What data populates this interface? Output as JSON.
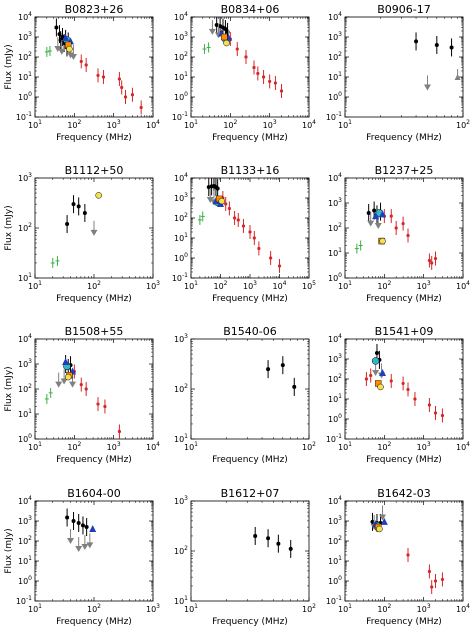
{
  "panels": [
    {
      "title": "B0823+26",
      "xdec": [
        1,
        4
      ],
      "ydec": [
        -1,
        4
      ],
      "xlabel": "Frequency (MHz)",
      "ylabel": "Flux (mJy)",
      "black": [
        [
          35,
          3000
        ],
        [
          42,
          1400
        ],
        [
          50,
          1000
        ],
        [
          60,
          800
        ],
        [
          70,
          600
        ],
        [
          45,
          700
        ],
        [
          55,
          500
        ],
        [
          65,
          300
        ]
      ],
      "gray_down": [
        [
          38,
          250
        ],
        [
          48,
          180
        ],
        [
          80,
          120
        ],
        [
          95,
          100
        ]
      ],
      "green": [
        [
          20,
          180
        ],
        [
          24,
          200
        ]
      ],
      "red": [
        [
          150,
          60
        ],
        [
          200,
          40
        ],
        [
          400,
          12
        ],
        [
          550,
          10
        ],
        [
          1400,
          8
        ],
        [
          1600,
          3
        ],
        [
          2000,
          1
        ],
        [
          3000,
          1.3
        ],
        [
          5000,
          0.3
        ]
      ],
      "yellow": [
        [
          75,
          250
        ]
      ],
      "orange": [
        [
          70,
          400
        ]
      ],
      "blue": [
        [
          60,
          900
        ],
        [
          80,
          600
        ]
      ],
      "cyan": [
        [
          65,
          700
        ]
      ]
    },
    {
      "title": "B0834+06",
      "xdec": [
        1,
        4
      ],
      "ydec": [
        -1,
        4
      ],
      "xlabel": "Frequency (MHz)",
      "ylabel": "",
      "black": [
        [
          45,
          4000
        ],
        [
          55,
          3500
        ],
        [
          65,
          3000
        ],
        [
          75,
          2500
        ],
        [
          85,
          1800
        ]
      ],
      "gray_down": [
        [
          35,
          1800
        ],
        [
          50,
          1200
        ],
        [
          90,
          600
        ]
      ],
      "green": [
        [
          22,
          250
        ],
        [
          28,
          300
        ]
      ],
      "red": [
        [
          100,
          800
        ],
        [
          150,
          250
        ],
        [
          250,
          100
        ],
        [
          400,
          30
        ],
        [
          500,
          15
        ],
        [
          700,
          10
        ],
        [
          1000,
          6
        ],
        [
          1400,
          5
        ],
        [
          2000,
          2
        ]
      ],
      "yellow": [
        [
          80,
          500
        ]
      ],
      "orange": [
        [
          70,
          1000
        ]
      ],
      "blue": [
        [
          60,
          1500
        ],
        [
          90,
          900
        ]
      ],
      "cyan": [
        [
          75,
          800
        ]
      ]
    },
    {
      "title": "B0906-17",
      "xdec": [
        1,
        2
      ],
      "ydec": [
        -1,
        4
      ],
      "xlabel": "Frequency (MHz)",
      "ylabel": "",
      "black": [
        [
          40,
          600
        ],
        [
          60,
          400
        ],
        [
          80,
          300
        ]
      ],
      "gray_down": [
        [
          50,
          3
        ]
      ],
      "gray_up": [
        [
          90,
          10
        ]
      ]
    },
    {
      "title": "B1112+50",
      "xdec": [
        1,
        3
      ],
      "ydec": [
        1,
        3
      ],
      "xlabel": "Frequency (MHz)",
      "ylabel": "Flux (mJy)",
      "black": [
        [
          35,
          120
        ],
        [
          45,
          300
        ],
        [
          55,
          270
        ],
        [
          70,
          200
        ]
      ],
      "gray_down": [
        [
          100,
          80
        ]
      ],
      "green": [
        [
          20,
          20
        ],
        [
          24,
          22
        ]
      ],
      "yellow": [
        [
          120,
          450
        ]
      ]
    },
    {
      "title": "B1133+16",
      "xdec": [
        1,
        5
      ],
      "ydec": [
        -1,
        4
      ],
      "xlabel": "Frequency (MHz)",
      "ylabel": "",
      "black": [
        [
          40,
          3500
        ],
        [
          50,
          3800
        ],
        [
          60,
          4000
        ],
        [
          70,
          3500
        ],
        [
          80,
          3000
        ]
      ],
      "gray_down": [
        [
          45,
          800
        ],
        [
          60,
          600
        ]
      ],
      "green": [
        [
          20,
          80
        ],
        [
          25,
          120
        ]
      ],
      "red": [
        [
          120,
          1000
        ],
        [
          150,
          500
        ],
        [
          200,
          300
        ],
        [
          300,
          100
        ],
        [
          400,
          80
        ],
        [
          600,
          40
        ],
        [
          1000,
          20
        ],
        [
          1400,
          10
        ],
        [
          2000,
          3
        ],
        [
          5000,
          1
        ],
        [
          10000,
          0.4
        ]
      ],
      "yellow": [
        [
          110,
          700
        ]
      ],
      "orange": [
        [
          90,
          900
        ]
      ],
      "blue": [
        [
          70,
          700
        ],
        [
          100,
          500
        ]
      ],
      "cyan": [
        [
          80,
          600
        ]
      ]
    },
    {
      "title": "B1237+25",
      "xdec": [
        1,
        4
      ],
      "ydec": [
        0,
        4
      ],
      "xlabel": "Frequency (MHz)",
      "ylabel": "",
      "black": [
        [
          40,
          400
        ],
        [
          55,
          500
        ],
        [
          65,
          350
        ],
        [
          80,
          450
        ]
      ],
      "gray_down": [
        [
          45,
          150
        ],
        [
          70,
          120
        ]
      ],
      "green": [
        [
          20,
          15
        ],
        [
          25,
          20
        ]
      ],
      "red": [
        [
          100,
          300
        ],
        [
          150,
          300
        ],
        [
          200,
          100
        ],
        [
          300,
          150
        ],
        [
          400,
          50
        ],
        [
          1400,
          5
        ],
        [
          1600,
          4
        ],
        [
          2000,
          6
        ]
      ],
      "yellow": [
        [
          90,
          30
        ]
      ],
      "orange": [
        [
          85,
          30
        ]
      ],
      "blue": [
        [
          60,
          300
        ],
        [
          90,
          350
        ]
      ],
      "cyan": [
        [
          75,
          400
        ]
      ]
    },
    {
      "title": "B1508+55",
      "xdec": [
        1,
        4
      ],
      "ydec": [
        0,
        4
      ],
      "xlabel": "Frequency (MHz)",
      "ylabel": "Flux (mJy)",
      "black": [
        [
          60,
          1000
        ],
        [
          70,
          700
        ],
        [
          80,
          900
        ]
      ],
      "gray_down": [
        [
          40,
          150
        ],
        [
          55,
          200
        ],
        [
          90,
          150
        ]
      ],
      "green": [
        [
          20,
          40
        ],
        [
          25,
          70
        ]
      ],
      "red": [
        [
          100,
          500
        ],
        [
          150,
          150
        ],
        [
          200,
          100
        ],
        [
          400,
          25
        ],
        [
          600,
          20
        ],
        [
          1400,
          2
        ]
      ],
      "yellow": [
        [
          70,
          300
        ]
      ],
      "orange": [
        [
          75,
          350
        ]
      ],
      "blue": [
        [
          60,
          1200
        ],
        [
          90,
          500
        ]
      ],
      "cyan": [
        [
          65,
          800
        ]
      ]
    },
    {
      "title": "B1540-06",
      "xdec": [
        1,
        2
      ],
      "ydec": [
        1,
        3
      ],
      "xlabel": "Frequency (MHz)",
      "ylabel": "",
      "black": [
        [
          45,
          250
        ],
        [
          60,
          300
        ],
        [
          75,
          110
        ]
      ]
    },
    {
      "title": "B1541+09",
      "xdec": [
        1,
        4
      ],
      "ydec": [
        -1,
        4
      ],
      "xlabel": "Frequency (MHz)",
      "ylabel": "",
      "black": [
        [
          65,
          2000
        ],
        [
          75,
          900
        ]
      ],
      "gray_down": [
        [
          60,
          200
        ],
        [
          85,
          150
        ]
      ],
      "red": [
        [
          35,
          100
        ],
        [
          45,
          150
        ],
        [
          150,
          80
        ],
        [
          300,
          60
        ],
        [
          400,
          30
        ],
        [
          600,
          10
        ],
        [
          1400,
          5
        ],
        [
          2000,
          2
        ],
        [
          3000,
          1.5
        ]
      ],
      "yellow": [
        [
          80,
          40
        ]
      ],
      "orange": [
        [
          70,
          60
        ]
      ],
      "blue": [
        [
          90,
          200
        ]
      ],
      "cyan": [
        [
          60,
          800
        ]
      ]
    },
    {
      "title": "B1604-00",
      "xdec": [
        1,
        3
      ],
      "ydec": [
        -1,
        4
      ],
      "xlabel": "Frequency (MHz)",
      "ylabel": "Flux (mJy)",
      "black": [
        [
          35,
          1500
        ],
        [
          45,
          1000
        ],
        [
          55,
          800
        ],
        [
          65,
          600
        ],
        [
          75,
          500
        ]
      ],
      "gray_down": [
        [
          40,
          100
        ],
        [
          55,
          40
        ],
        [
          70,
          50
        ],
        [
          85,
          60
        ]
      ],
      "blue": [
        [
          95,
          400
        ]
      ]
    },
    {
      "title": "B1612+07",
      "xdec": [
        1,
        2
      ],
      "ydec": [
        1,
        3
      ],
      "xlabel": "Frequency (MHz)",
      "ylabel": "",
      "black": [
        [
          35,
          200
        ],
        [
          45,
          180
        ],
        [
          55,
          140
        ],
        [
          70,
          110
        ]
      ]
    },
    {
      "title": "B1642-03",
      "xdec": [
        1,
        4
      ],
      "ydec": [
        -1,
        4
      ],
      "xlabel": "Frequency (MHz)",
      "ylabel": "",
      "black": [
        [
          50,
          900
        ],
        [
          65,
          800
        ],
        [
          80,
          800
        ]
      ],
      "gray_down": [
        [
          55,
          500
        ],
        [
          90,
          1500
        ]
      ],
      "red": [
        [
          400,
          20
        ],
        [
          1400,
          3
        ],
        [
          1600,
          0.5
        ],
        [
          2000,
          1
        ],
        [
          3000,
          1.2
        ]
      ],
      "yellow": [
        [
          75,
          400
        ]
      ],
      "orange": [
        [
          70,
          500
        ]
      ],
      "blue": [
        [
          60,
          700
        ],
        [
          100,
          900
        ]
      ],
      "cyan": [
        [
          65,
          600
        ]
      ]
    }
  ],
  "colors": {
    "black": "#000000",
    "gray": "#808080",
    "green": "#3cb043",
    "red": "#d62728",
    "yellow": "#f5e050",
    "orange": "#ff8c00",
    "blue": "#1f3fbf",
    "cyan": "#30b8c8"
  }
}
